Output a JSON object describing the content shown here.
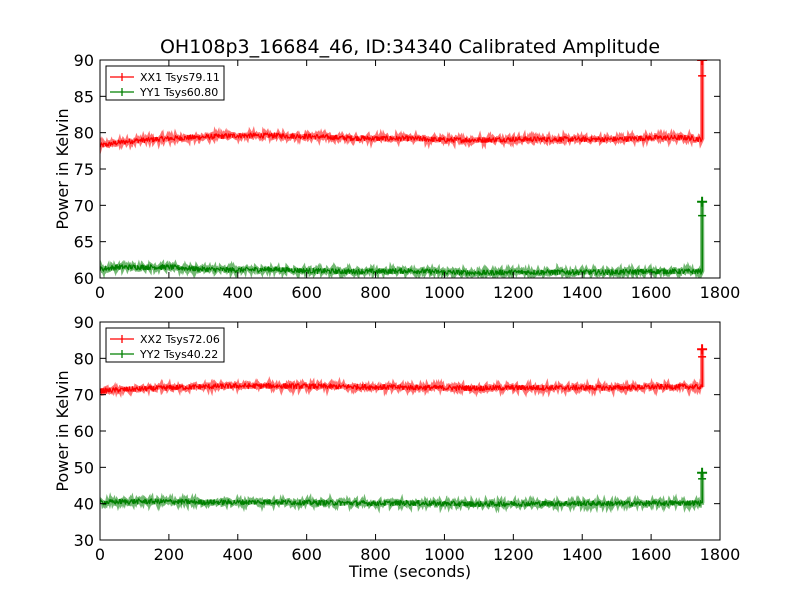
{
  "title": "OH108p3_16684_46, ID:34340 Calibrated Amplitude",
  "colors": {
    "xx": "#ff0000",
    "yy": "#008000"
  },
  "chart_data": [
    {
      "type": "line",
      "xlabel": "",
      "ylabel": "Power in Kelvin",
      "xlim": [
        0,
        1800
      ],
      "ylim": [
        60,
        90
      ],
      "xticks": [
        0,
        200,
        400,
        600,
        800,
        1000,
        1200,
        1400,
        1600,
        1800
      ],
      "yticks": [
        60,
        65,
        70,
        75,
        80,
        85,
        90
      ],
      "legend_position": "top-left",
      "series": [
        {
          "name": "XX1 Tsys79.11",
          "color": "#ff0000",
          "x": [
            0,
            50,
            100,
            200,
            300,
            400,
            500,
            600,
            700,
            800,
            900,
            1000,
            1100,
            1200,
            1300,
            1400,
            1500,
            1600,
            1700,
            1745
          ],
          "y": [
            78.2,
            78.6,
            78.9,
            79.2,
            79.4,
            79.6,
            79.6,
            79.5,
            79.3,
            79.2,
            79.2,
            79.0,
            79.0,
            79.1,
            79.1,
            79.1,
            79.1,
            79.3,
            79.3,
            79.1
          ],
          "spike": {
            "x": 1748,
            "y": 90
          }
        },
        {
          "name": "YY1 Tsys60.80",
          "color": "#008000",
          "x": [
            0,
            50,
            100,
            200,
            300,
            400,
            500,
            600,
            700,
            800,
            900,
            1000,
            1100,
            1200,
            1300,
            1400,
            1500,
            1600,
            1700,
            1745
          ],
          "y": [
            61.2,
            61.5,
            61.5,
            61.5,
            61.2,
            61.1,
            61.2,
            61.0,
            60.9,
            60.9,
            61.0,
            60.8,
            60.7,
            60.8,
            60.8,
            60.8,
            60.8,
            60.9,
            60.9,
            60.9
          ],
          "spike": {
            "x": 1748,
            "y": 70.5
          }
        }
      ]
    },
    {
      "type": "line",
      "xlabel": "Time (seconds)",
      "ylabel": "Power in Kelvin",
      "xlim": [
        0,
        1800
      ],
      "ylim": [
        30,
        90
      ],
      "xticks": [
        0,
        200,
        400,
        600,
        800,
        1000,
        1200,
        1400,
        1600,
        1800
      ],
      "yticks": [
        30,
        40,
        50,
        60,
        70,
        80,
        90
      ],
      "legend_position": "top-left",
      "series": [
        {
          "name": "XX2 Tsys72.06",
          "color": "#ff0000",
          "x": [
            0,
            50,
            100,
            200,
            300,
            400,
            500,
            600,
            700,
            800,
            900,
            1000,
            1100,
            1200,
            1300,
            1400,
            1500,
            1600,
            1700,
            1745
          ],
          "y": [
            71.0,
            71.3,
            71.5,
            71.9,
            72.2,
            72.4,
            72.4,
            72.3,
            72.2,
            72.1,
            72.0,
            71.9,
            71.8,
            71.9,
            71.9,
            71.9,
            71.9,
            72.1,
            72.2,
            72.1
          ],
          "spike": {
            "x": 1748,
            "y": 82.5
          }
        },
        {
          "name": "YY2 Tsys40.22",
          "color": "#008000",
          "x": [
            0,
            50,
            100,
            200,
            300,
            400,
            500,
            600,
            700,
            800,
            900,
            1000,
            1100,
            1200,
            1300,
            1400,
            1500,
            1600,
            1700,
            1745
          ],
          "y": [
            40.3,
            40.5,
            40.6,
            40.6,
            40.4,
            40.4,
            40.5,
            40.3,
            40.2,
            40.1,
            40.2,
            40.0,
            39.9,
            40.0,
            40.0,
            40.1,
            40.0,
            40.1,
            40.2,
            40.2
          ],
          "spike": {
            "x": 1748,
            "y": 48.5
          }
        }
      ]
    }
  ]
}
